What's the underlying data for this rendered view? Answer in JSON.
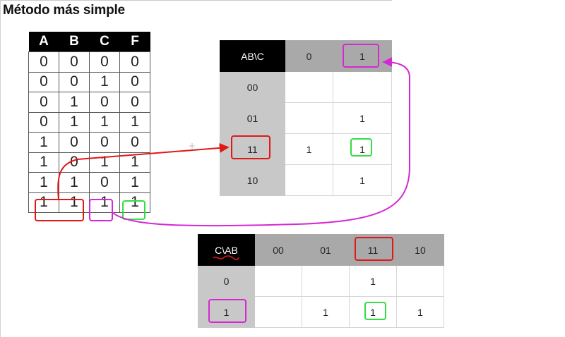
{
  "title": "Método más simple",
  "truth_table": {
    "headers": [
      "A",
      "B",
      "C",
      "F"
    ],
    "rows": [
      [
        "0",
        "0",
        "0",
        "0"
      ],
      [
        "0",
        "0",
        "1",
        "0"
      ],
      [
        "0",
        "1",
        "0",
        "0"
      ],
      [
        "0",
        "1",
        "1",
        "1"
      ],
      [
        "1",
        "0",
        "0",
        "0"
      ],
      [
        "1",
        "0",
        "1",
        "1"
      ],
      [
        "1",
        "1",
        "0",
        "1"
      ],
      [
        "1",
        "1",
        "1",
        "1"
      ]
    ]
  },
  "kmap_ab_c": {
    "corner": "AB\\C",
    "col_headers": [
      "0",
      "1"
    ],
    "row_headers": [
      "00",
      "01",
      "11",
      "10"
    ],
    "cells": [
      [
        "",
        ""
      ],
      [
        "",
        "1"
      ],
      [
        "1",
        "1"
      ],
      [
        "",
        "1"
      ]
    ]
  },
  "kmap_c_ab": {
    "corner": "C\\AB",
    "col_headers": [
      "00",
      "01",
      "11",
      "10"
    ],
    "row_headers": [
      "0",
      "1"
    ],
    "cells": [
      [
        "",
        "",
        "1",
        ""
      ],
      [
        "",
        "1",
        "1",
        "1"
      ]
    ]
  },
  "colors": {
    "red": "#e01818",
    "magenta": "#d428d4",
    "green": "#33dd44"
  }
}
